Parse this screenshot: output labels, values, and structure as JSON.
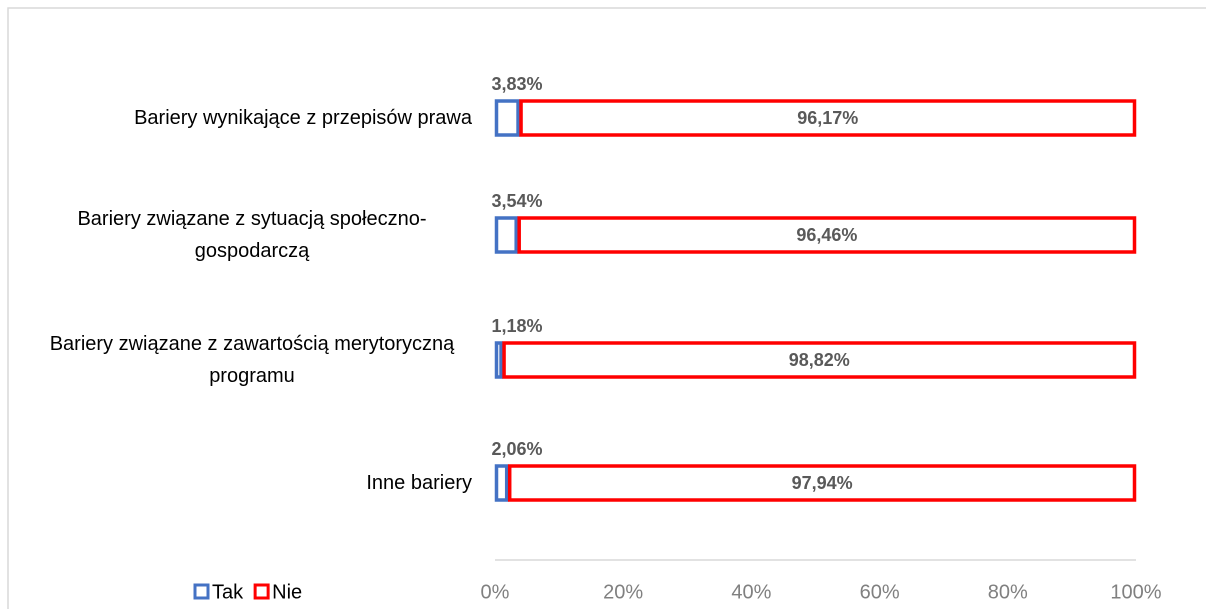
{
  "chart_data": {
    "type": "stacked_bar_horizontal",
    "categories": [
      "Bariery wynikające z przepisów prawa",
      "Bariery związane z sytuacją społeczno-gospodarczą",
      "Bariery związane z zawartością merytoryczną programu",
      "Inne bariery"
    ],
    "series": [
      {
        "name": "Tak",
        "color": "#4472c4",
        "values": [
          3.83,
          3.54,
          1.18,
          2.06
        ],
        "value_labels": [
          "3,83%",
          "3,54%",
          "1,18%",
          "2,06%"
        ]
      },
      {
        "name": "Nie",
        "color": "#ff0000",
        "values": [
          96.17,
          96.46,
          98.82,
          97.94
        ],
        "value_labels": [
          "96,17%",
          "96,46%",
          "98,82%",
          "97,94%"
        ]
      }
    ],
    "xlim": [
      0,
      100
    ],
    "xticks": [
      {
        "value": 0,
        "label": "0%"
      },
      {
        "value": 20,
        "label": "20%"
      },
      {
        "value": 40,
        "label": "40%"
      },
      {
        "value": 60,
        "label": "60%"
      },
      {
        "value": 80,
        "label": "80%"
      },
      {
        "value": 100,
        "label": "100%"
      }
    ],
    "legend": "bottom-left"
  }
}
